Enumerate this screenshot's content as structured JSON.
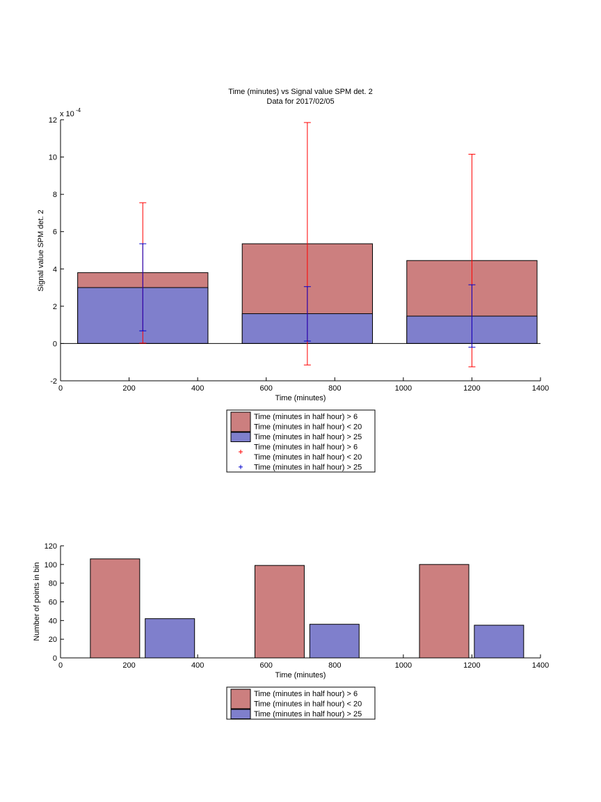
{
  "colors": {
    "red_fill": "#CC7F7F",
    "blue_fill": "#7F7FCC",
    "red_err": "#FF0000",
    "blue_err": "#0000CC"
  },
  "chart_data": [
    {
      "type": "bar",
      "title": "Time (minutes) vs Signal value SPM det. 2",
      "subtitle": "Data for 2017/02/05",
      "xlabel": "Time (minutes)",
      "ylabel": "Signal value SPM det. 2",
      "y_exponent_label": "x 10",
      "y_exponent": "-4",
      "xlim": [
        0,
        1400
      ],
      "ylim": [
        -2,
        12
      ],
      "xticks": [
        0,
        200,
        400,
        600,
        800,
        1000,
        1200,
        1400
      ],
      "yticks": [
        -2,
        0,
        2,
        4,
        6,
        8,
        10,
        12
      ],
      "bar_ranges": [
        [
          50,
          430
        ],
        [
          530,
          910
        ],
        [
          1010,
          1390
        ]
      ],
      "series": [
        {
          "name": "Time (minutes in half hour) > 6 / Time (minutes in half hour) < 20",
          "color": "red",
          "values": [
            3.8,
            5.35,
            4.45
          ]
        },
        {
          "name": "Time (minutes in half hour) > 25",
          "color": "blue",
          "values": [
            3.0,
            1.6,
            1.47
          ]
        }
      ],
      "errorbars": [
        {
          "series": "red",
          "x": [
            240,
            720,
            1200
          ],
          "low": [
            0.02,
            -1.15,
            -1.25
          ],
          "high": [
            7.55,
            11.85,
            10.15
          ]
        },
        {
          "series": "blue",
          "x": [
            240,
            720,
            1200
          ],
          "low": [
            0.68,
            0.13,
            -0.2
          ],
          "high": [
            5.35,
            3.05,
            3.15
          ]
        }
      ],
      "legend": [
        {
          "symbol": "box",
          "color": "red",
          "lines": [
            "Time (minutes in half hour) > 6",
            "Time (minutes in half hour) < 20"
          ]
        },
        {
          "symbol": "box",
          "color": "blue",
          "lines": [
            "Time (minutes in half hour) > 25"
          ]
        },
        {
          "symbol": "plus",
          "color": "red",
          "lines": [
            "Time (minutes in half hour) > 6",
            "Time (minutes in half hour) < 20"
          ]
        },
        {
          "symbol": "plus",
          "color": "blue",
          "lines": [
            "Time (minutes in half hour) > 25"
          ]
        }
      ]
    },
    {
      "type": "bar",
      "xlabel": "Time (minutes)",
      "ylabel": "Number of points in bin",
      "xlim": [
        0,
        1400
      ],
      "ylim": [
        0,
        120
      ],
      "xticks": [
        0,
        200,
        400,
        600,
        800,
        1000,
        1200,
        1400
      ],
      "yticks": [
        0,
        20,
        40,
        60,
        80,
        100,
        120
      ],
      "bars": [
        {
          "series": "red",
          "x0": 87,
          "x1": 231,
          "value": 106
        },
        {
          "series": "blue",
          "x0": 247,
          "x1": 391,
          "value": 42
        },
        {
          "series": "red",
          "x0": 567,
          "x1": 711,
          "value": 99
        },
        {
          "series": "blue",
          "x0": 727,
          "x1": 871,
          "value": 36
        },
        {
          "series": "red",
          "x0": 1047,
          "x1": 1191,
          "value": 100
        },
        {
          "series": "blue",
          "x0": 1207,
          "x1": 1351,
          "value": 35
        }
      ],
      "legend": [
        {
          "symbol": "box",
          "color": "red",
          "lines": [
            "Time (minutes in half hour) > 6",
            "Time (minutes in half hour) < 20"
          ]
        },
        {
          "symbol": "box",
          "color": "blue",
          "lines": [
            "Time (minutes in half hour) > 25"
          ]
        }
      ]
    }
  ]
}
